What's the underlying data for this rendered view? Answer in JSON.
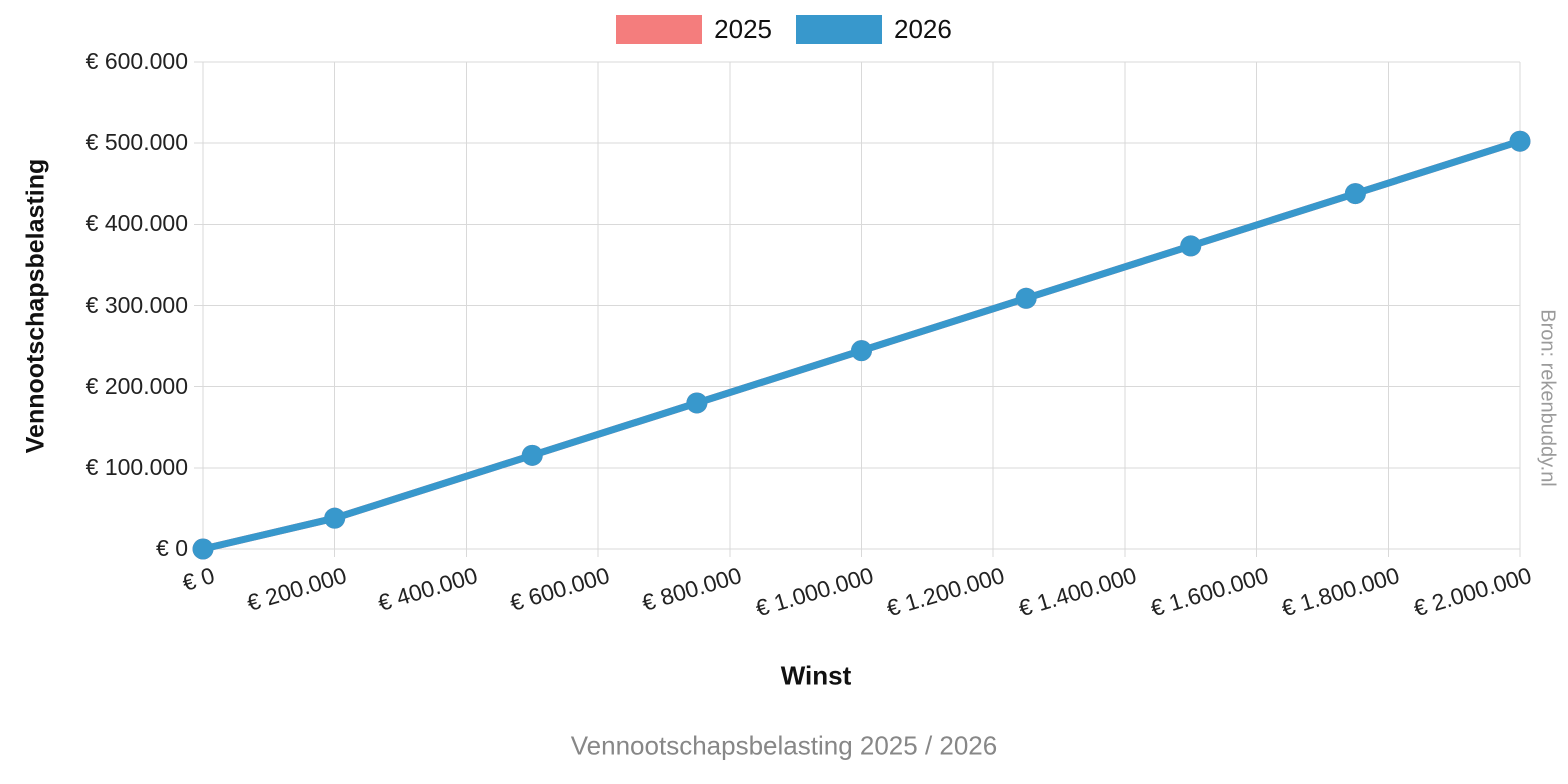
{
  "legend": [
    {
      "label": "2025",
      "color": "#f47d7d"
    },
    {
      "label": "2026",
      "color": "#3898cc"
    }
  ],
  "source_label": "Bron: rekenbuddy.nl",
  "chart_data": {
    "type": "line",
    "title": "Vennootschapsbelasting 2025 / 2026",
    "xlabel": "Winst",
    "ylabel": "Vennootschapsbelasting",
    "xlim": [
      0,
      2000000
    ],
    "ylim": [
      0,
      600000
    ],
    "grid": true,
    "legend_position": "top",
    "x": [
      0,
      200000,
      500000,
      750000,
      1000000,
      1250000,
      1500000,
      1750000,
      2000000
    ],
    "series": [
      {
        "name": "2025",
        "color": "#f47d7d",
        "values": [
          0,
          38000,
          115400,
          179900,
          244400,
          308900,
          373400,
          437900,
          502400
        ]
      },
      {
        "name": "2026",
        "color": "#3898cc",
        "values": [
          0,
          38000,
          115400,
          179900,
          244400,
          308900,
          373400,
          437900,
          502400
        ]
      }
    ],
    "x_ticks": [
      {
        "value": 0,
        "label": "€ 0"
      },
      {
        "value": 200000,
        "label": "€ 200.000"
      },
      {
        "value": 400000,
        "label": "€ 400.000"
      },
      {
        "value": 600000,
        "label": "€ 600.000"
      },
      {
        "value": 800000,
        "label": "€ 800.000"
      },
      {
        "value": 1000000,
        "label": "€ 1.000.000"
      },
      {
        "value": 1200000,
        "label": "€ 1.200.000"
      },
      {
        "value": 1400000,
        "label": "€ 1.400.000"
      },
      {
        "value": 1600000,
        "label": "€ 1.600.000"
      },
      {
        "value": 1800000,
        "label": "€ 1.800.000"
      },
      {
        "value": 2000000,
        "label": "€ 2.000.000"
      }
    ],
    "y_ticks": [
      {
        "value": 0,
        "label": "€ 0"
      },
      {
        "value": 100000,
        "label": "€ 100.000"
      },
      {
        "value": 200000,
        "label": "€ 200.000"
      },
      {
        "value": 300000,
        "label": "€ 300.000"
      },
      {
        "value": 400000,
        "label": "€ 400.000"
      },
      {
        "value": 500000,
        "label": "€ 500.000"
      },
      {
        "value": 600000,
        "label": "€ 600.000"
      }
    ]
  }
}
